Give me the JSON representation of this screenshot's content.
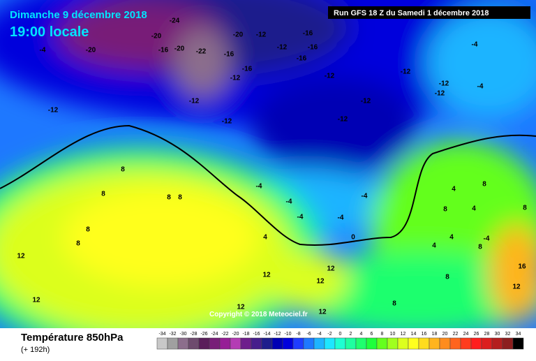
{
  "header": {
    "date": "Dimanche 9 décembre 2018",
    "time": "19:00 locale",
    "run": "Run GFS 18 Z du Samedi 1 décembre 2018"
  },
  "footer": {
    "title": "Température 850hPa",
    "lead": "(+ 192h)",
    "copyright": "Copyright © 2018 Meteociel.fr"
  },
  "colorbar": {
    "ticks": [
      -34,
      -32,
      -30,
      -28,
      -26,
      -24,
      -22,
      -20,
      -18,
      -16,
      -14,
      -12,
      -10,
      -8,
      -6,
      -4,
      -2,
      0,
      2,
      4,
      6,
      8,
      10,
      12,
      14,
      16,
      18,
      20,
      22,
      24,
      26,
      28,
      30,
      32,
      34
    ],
    "colors": [
      "#c8c8c8",
      "#a0a0a0",
      "#8c6e8c",
      "#6e4b6e",
      "#5a1e5a",
      "#781e78",
      "#961e96",
      "#b43cb4",
      "#6e1e8c",
      "#461e8c",
      "#1e1e8c",
      "#0000b4",
      "#0000dc",
      "#1e3cff",
      "#1e78ff",
      "#1eb4ff",
      "#1ee6ff",
      "#1effd2",
      "#1effa0",
      "#1eff6e",
      "#1eff3c",
      "#64ff1e",
      "#a0ff1e",
      "#dcff1e",
      "#ffff1e",
      "#ffdc1e",
      "#ffb41e",
      "#ff8c1e",
      "#ff641e",
      "#ff3c1e",
      "#ff1e1e",
      "#dc1e1e",
      "#b41e1e",
      "#8c1e1e",
      "#000000"
    ]
  },
  "map": {
    "labels": [
      -20,
      -24,
      -20,
      -16,
      -20,
      -22,
      -16,
      -20,
      -12,
      -16,
      -16,
      -12,
      -16,
      -16,
      -12,
      -12,
      -12,
      -12,
      -12,
      -4,
      -4,
      -12,
      -12,
      -12,
      -12,
      -4,
      -12,
      -4,
      -4,
      -4,
      -4,
      -4,
      -4,
      0,
      4,
      8,
      8,
      8,
      8,
      8,
      12,
      8,
      4,
      8,
      4,
      8,
      4,
      8,
      4,
      12,
      12,
      12,
      12,
      16,
      12,
      12,
      8,
      12,
      8,
      8
    ]
  }
}
